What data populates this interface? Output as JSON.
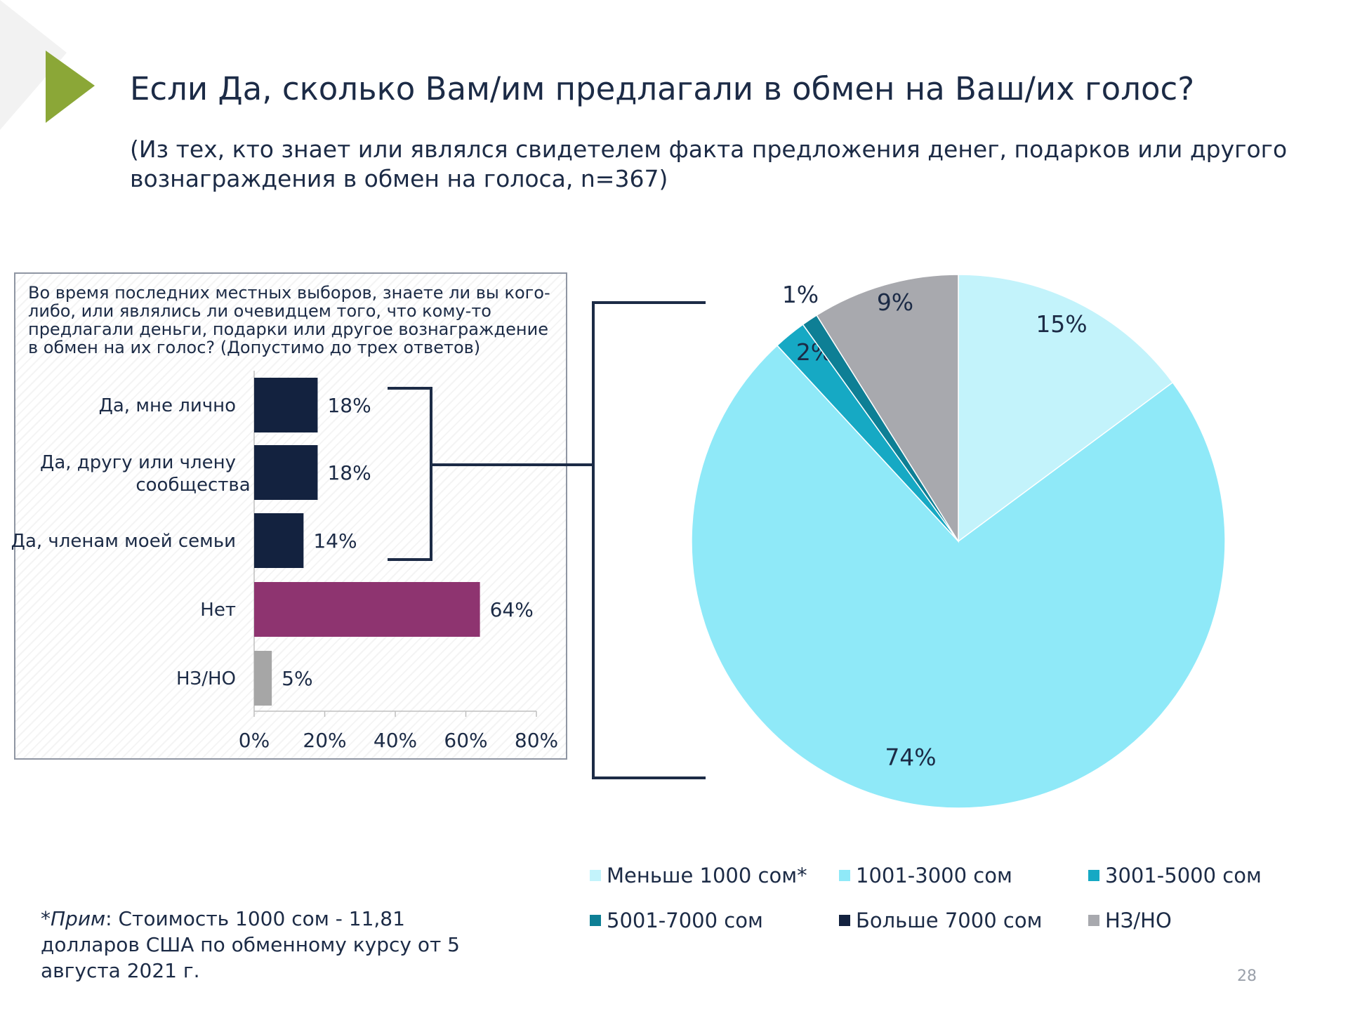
{
  "title": "Если Да, сколько Вам/им предлагали в обмен на Ваш/их голос?",
  "subtitle": "(Из тех, кто знает или являлся свидетелем факта предложения денег, подарков или другого вознаграждения в обмен на голоса, n=367)",
  "question": "Во время последних местных выборов, знаете ли вы кого-либо, или являлись ли очевидцем того, что кому-то предлагали деньги, подарки или другое вознаграждение в обмен на их голос? (Допустимо до трех ответов)",
  "footnote": {
    "label": "*Прим",
    "text": ": Стоимость 1000 сом - 11,81 долларов США по обменному курсу от 5 августа 2021 г."
  },
  "page_number": "28",
  "colors": {
    "navy": "#13223f",
    "plum": "#8e3470",
    "gray": "#a6a6a6",
    "accent_green": "#8ba737"
  },
  "chart_data": [
    {
      "type": "bar",
      "orientation": "horizontal",
      "categories": [
        "Да, мне лично",
        "Да, другу или члену сообщества",
        "Да, членам моей семьи",
        "Нет",
        "НЗ/НО"
      ],
      "values": [
        18,
        18,
        14,
        64,
        5
      ],
      "value_labels": [
        "18%",
        "18%",
        "14%",
        "64%",
        "5%"
      ],
      "bar_colors": [
        "#13223f",
        "#13223f",
        "#13223f",
        "#8e3470",
        "#a6a6a6"
      ],
      "xlim": [
        0,
        80
      ],
      "xticks": [
        "0%",
        "20%",
        "40%",
        "60%",
        "80%"
      ]
    },
    {
      "type": "pie",
      "categories": [
        "Меньше 1000 сом*",
        "1001-3000 сом",
        "3001-5000 сом",
        "5001-7000 сом",
        "Больше 7000 сом",
        "НЗ/НО"
      ],
      "values": [
        15,
        74,
        2,
        1,
        0,
        9
      ],
      "value_labels": [
        "15%",
        "74%",
        "2%",
        "1%",
        "",
        "9%"
      ],
      "colors": [
        "#c3f3fb",
        "#8fe9f8",
        "#16a9c4",
        "#0e7f95",
        "#13223f",
        "#a8a9ae"
      ],
      "legend_position": "bottom"
    }
  ]
}
